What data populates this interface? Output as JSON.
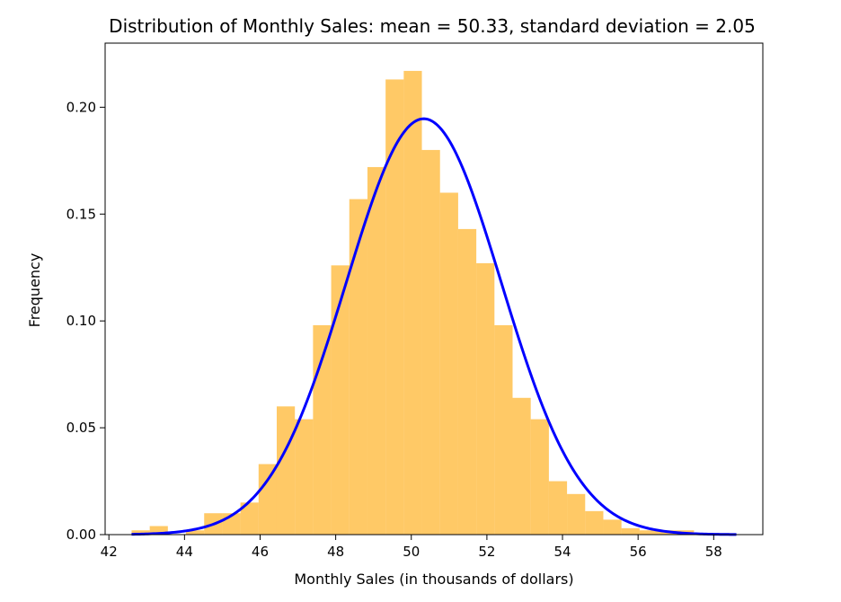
{
  "chart_data": {
    "type": "bar",
    "title": "Distribution of Monthly Sales: mean = 50.33, standard deviation = 2.05",
    "xlabel": "Monthly Sales (in thousands of dollars)",
    "ylabel": "Frequency",
    "xlim": [
      41.9,
      59.3
    ],
    "ylim": [
      0,
      0.23
    ],
    "xticks": [
      42,
      44,
      46,
      48,
      50,
      52,
      54,
      56,
      58
    ],
    "yticks": [
      0.0,
      0.05,
      0.1,
      0.15,
      0.2
    ],
    "xtick_labels": [
      "42",
      "44",
      "46",
      "48",
      "50",
      "52",
      "54",
      "56",
      "58"
    ],
    "ytick_labels": [
      "0.00",
      "0.05",
      "0.10",
      "0.15",
      "0.20"
    ],
    "bins": {
      "edges": [
        42.6,
        43.08,
        43.56,
        44.04,
        44.52,
        45.0,
        45.48,
        45.96,
        46.44,
        46.92,
        47.4,
        47.88,
        48.36,
        48.84,
        49.32,
        49.8,
        50.28,
        50.76,
        51.24,
        51.72,
        52.2,
        52.68,
        53.16,
        53.64,
        54.12,
        54.6,
        55.08,
        55.56,
        56.04,
        56.52,
        57.0,
        57.48,
        57.96
      ],
      "values": [
        0.002,
        0.004,
        0.0,
        0.002,
        0.01,
        0.01,
        0.015,
        0.033,
        0.06,
        0.054,
        0.098,
        0.126,
        0.157,
        0.172,
        0.213,
        0.217,
        0.18,
        0.16,
        0.143,
        0.127,
        0.098,
        0.064,
        0.054,
        0.025,
        0.019,
        0.011,
        0.007,
        0.003,
        0.002,
        0.002,
        0.002,
        0.0
      ]
    },
    "series": [
      {
        "type": "line",
        "color": "#0000ff",
        "mean": 50.33,
        "std": 2.05,
        "x_range": [
          42.6,
          58.6
        ]
      }
    ],
    "bar_color": "#ffa500",
    "grid": false
  }
}
